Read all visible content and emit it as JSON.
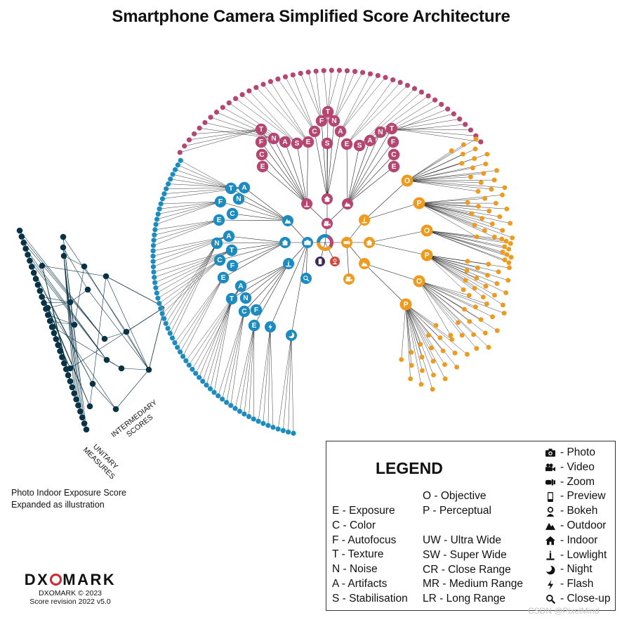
{
  "title": "Smartphone Camera Simplified Score Architecture",
  "colors": {
    "photo": "#1a8cc2",
    "video": "#b84470",
    "zoom": "#f19a1a",
    "tree": "#083346",
    "line": "#222222"
  },
  "tree_labels": {
    "intermediary": [
      "INTERMEDIARY",
      "SCORES"
    ],
    "unitary": [
      "UNITARY",
      "MEASURES"
    ]
  },
  "illustration_note": [
    "Photo Indoor Exposure Score",
    "Expanded as illustration"
  ],
  "logo": {
    "left": "DX",
    "right": "MARK",
    "copyright": "DXOMARK © 2023",
    "revision": "Score revision 2022 v5.0"
  },
  "legend": {
    "title": "LEGEND",
    "attributes": [
      "E - Exposure",
      "C - Color",
      "F - Autofocus",
      "T - Texture",
      "N - Noise",
      "A - Artifacts",
      "S - Stabilisation"
    ],
    "types": [
      "O - Objective",
      "P - Perceptual"
    ],
    "ranges": [
      "UW - Ultra Wide",
      "SW - Super Wide",
      "CR - Close Range",
      "MR - Medium Range",
      "LR - Long Range"
    ],
    "icons": [
      {
        "icon": "photo",
        "label": "- Photo"
      },
      {
        "icon": "video",
        "label": "- Video"
      },
      {
        "icon": "zoom",
        "label": "- Zoom"
      },
      {
        "icon": "preview",
        "label": "- Preview"
      },
      {
        "icon": "bokeh",
        "label": "- Bokeh"
      },
      {
        "icon": "outdoor",
        "label": "- Outdoor"
      },
      {
        "icon": "indoor",
        "label": "- Indoor"
      },
      {
        "icon": "lowlight",
        "label": "- Lowlight"
      },
      {
        "icon": "night",
        "label": "- Night"
      },
      {
        "icon": "flash",
        "label": "- Flash"
      },
      {
        "icon": "closeup",
        "label": "- Close-up"
      }
    ]
  },
  "photo_branch": {
    "outdoor_letters": [
      "E",
      "F",
      "C",
      "T",
      "N",
      "A"
    ],
    "indoor_letters": [
      "E",
      "C",
      "F",
      "T",
      "N",
      "A"
    ],
    "lowlight_letters": [
      "E",
      "C",
      "F",
      "T",
      "N",
      "A"
    ]
  },
  "video_branch": {
    "left_letters": [
      "E",
      "C",
      "F",
      "T",
      "N",
      "A",
      "S",
      "E"
    ],
    "right_letters": [
      "E",
      "C",
      "F",
      "T",
      "N",
      "A",
      "S",
      "E"
    ],
    "center_letters": [
      "C",
      "F",
      "T",
      "N",
      "A",
      "S"
    ]
  },
  "zoom_branch": {
    "markers": [
      "O",
      "P",
      "O",
      "P",
      "O",
      "P"
    ]
  },
  "watermark": "CSDN @PixelMind"
}
